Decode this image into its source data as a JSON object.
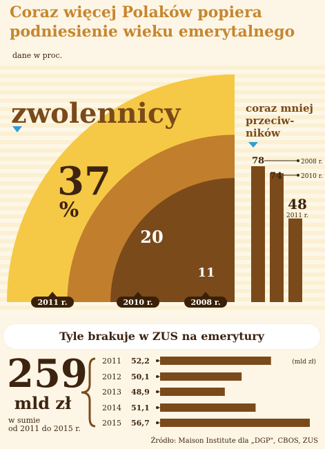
{
  "header": {
    "title": "Coraz więcej Polaków popiera podniesienie wieku emerytalnego",
    "subtitle": "dane w proc."
  },
  "supporters": {
    "label": "zwolennicy",
    "percent_sign": "%"
  },
  "opponents": {
    "label_lines": [
      "coraz mniej",
      "przeciw-",
      "ników"
    ]
  },
  "deficit": {
    "header": "Tyle brakuje w ZUS na emerytury",
    "total_value": "259",
    "total_unit": "mld zł",
    "total_note_line1": "w sumie",
    "total_note_line2": "od 2011 do 2015 r.",
    "unit_note": "(mld zł)"
  },
  "source": "Źródło: Maison Institute dla „DGP\", CBOS, ZUS",
  "colors": {
    "accent": "#c7862f",
    "dark_brown": "#7a4a1a",
    "mid_brown": "#c17e2c",
    "yellow": "#f5c945",
    "text": "#3d2410",
    "marker_blue": "#2a9fd8"
  },
  "chart_data": [
    {
      "type": "pie",
      "title": "zwolennicy",
      "unit": "%",
      "categories": [
        "2011 r.",
        "2010 r.",
        "2008 r."
      ],
      "values": [
        37,
        20,
        11
      ],
      "value_labels": [
        "37",
        "20",
        "11"
      ]
    },
    {
      "type": "bar",
      "title": "coraz mniej przeciw-ników",
      "categories": [
        "2008 r.",
        "2010 r.",
        "2011 r."
      ],
      "values": [
        78,
        74,
        48
      ],
      "value_labels": [
        "78",
        "74",
        "48"
      ]
    },
    {
      "type": "bar",
      "orientation": "horizontal",
      "title": "Tyle brakuje w ZUS na emerytury",
      "categories": [
        "2011",
        "2012",
        "2013",
        "2014",
        "2015"
      ],
      "values": [
        52.2,
        50.1,
        48.9,
        51.1,
        56.7
      ],
      "value_labels": [
        "52,2",
        "50,1",
        "48,9",
        "51,1",
        "56,7"
      ],
      "unit": "(mld zł)"
    }
  ]
}
